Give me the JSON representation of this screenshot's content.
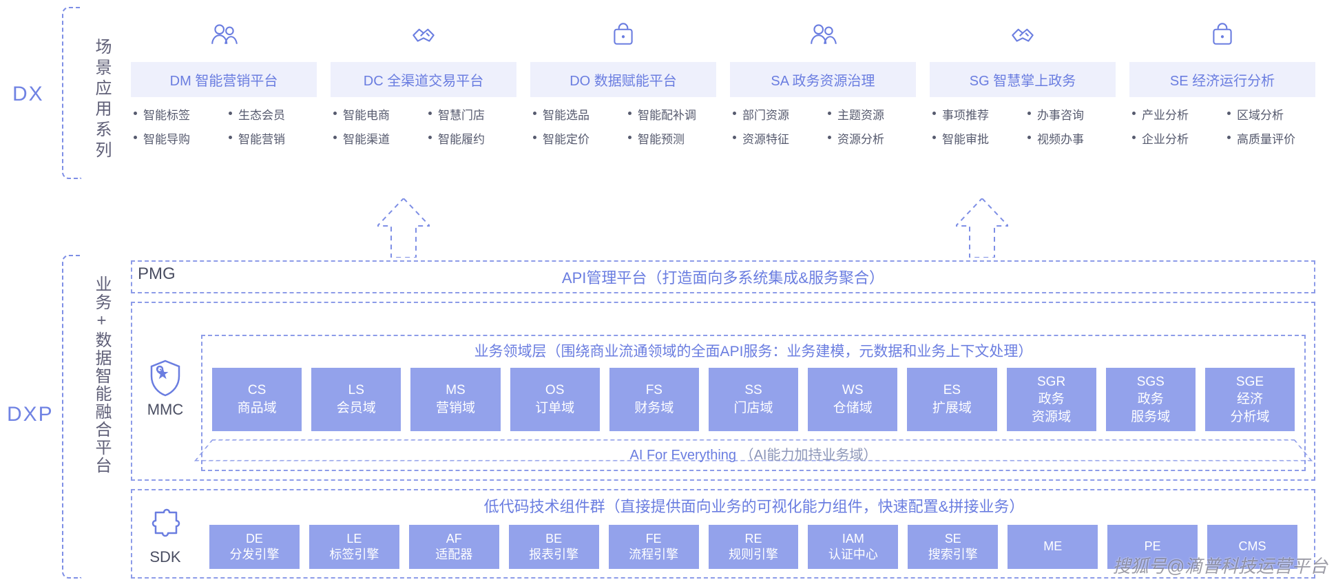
{
  "colors": {
    "accent": "#6a7de0",
    "accent_light": "#eef0fc",
    "box_fill": "#93a2eb",
    "dash": "#8c9be8",
    "text_dark": "#4a4e62",
    "text_body": "#565a6e",
    "bg": "#ffffff"
  },
  "left": {
    "dx": "DX",
    "dxp": "DXP",
    "dx_section": "场景应用系列",
    "dxp_section": "业务+数据智能融合平台"
  },
  "dx_cards": [
    {
      "icon": "people",
      "title": "DM 智能营销平台",
      "feats": [
        "智能标签",
        "生态会员",
        "智能导购",
        "智能营销"
      ]
    },
    {
      "icon": "handshake",
      "title": "DC 全渠道交易平台",
      "feats": [
        "智能电商",
        "智慧门店",
        "智能渠道",
        "智能履约"
      ]
    },
    {
      "icon": "bag",
      "title": "DO 数据赋能平台",
      "feats": [
        "智能选品",
        "智能配补调",
        "智能定价",
        "智能预测"
      ]
    },
    {
      "icon": "people",
      "title": "SA 政务资源治理",
      "feats": [
        "部门资源",
        "主题资源",
        "资源特征",
        "资源分析"
      ]
    },
    {
      "icon": "handshake",
      "title": "SG 智慧掌上政务",
      "feats": [
        "事项推荐",
        "办事咨询",
        "智能审批",
        "视频办事"
      ]
    },
    {
      "icon": "bag",
      "title": "SE 经济运行分析",
      "feats": [
        "产业分析",
        "区域分析",
        "企业分析",
        "高质量评价"
      ]
    }
  ],
  "pmg": {
    "label": "PMG",
    "title": "API管理平台（打造面向多系统集成&服务聚合）"
  },
  "mmc": {
    "label": "MMC",
    "title": "业务领域层（围绕商业流通领域的全面API服务：业务建模，元数据和业务上下文处理）",
    "cells": [
      {
        "code": "CS",
        "name": "商品域"
      },
      {
        "code": "LS",
        "name": "会员域"
      },
      {
        "code": "MS",
        "name": "营销域"
      },
      {
        "code": "OS",
        "name": "订单域"
      },
      {
        "code": "FS",
        "name": "财务域"
      },
      {
        "code": "SS",
        "name": "门店域"
      },
      {
        "code": "WS",
        "name": "仓储域"
      },
      {
        "code": "ES",
        "name": "扩展域"
      },
      {
        "code": "SGR",
        "name": "政务\n资源域"
      },
      {
        "code": "SGS",
        "name": "政务\n服务域"
      },
      {
        "code": "SGE",
        "name": "经济\n分析域"
      }
    ],
    "ai_en": "AI For Everything",
    "ai_cn": "（AI能力加持业务域）"
  },
  "sdk": {
    "label": "SDK",
    "title": "低代码技术组件群（直接提供面向业务的可视化能力组件，快速配置&拼接业务）",
    "cells": [
      {
        "code": "DE",
        "name": "分发引擎"
      },
      {
        "code": "LE",
        "name": "标签引擎"
      },
      {
        "code": "AF",
        "name": "适配器"
      },
      {
        "code": "BE",
        "name": "报表引擎"
      },
      {
        "code": "FE",
        "name": "流程引擎"
      },
      {
        "code": "RE",
        "name": "规则引擎"
      },
      {
        "code": "IAM",
        "name": "认证中心"
      },
      {
        "code": "SE",
        "name": "搜索引擎"
      },
      {
        "code": "ME",
        "name": ""
      },
      {
        "code": "PE",
        "name": ""
      },
      {
        "code": "CMS",
        "name": ""
      }
    ]
  },
  "watermark": "搜狐号@滴普科技运营平台"
}
